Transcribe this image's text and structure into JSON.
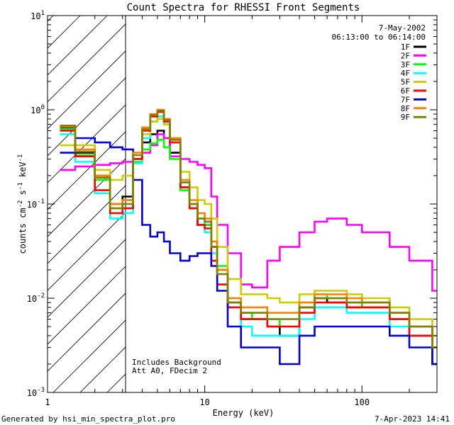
{
  "chart_data": {
    "type": "line",
    "title": "Count Spectra for RHESSI Front Segments",
    "xlabel": "Energy (keV)",
    "ylabel": "counts cm-2 s-1 keV-1",
    "xscale": "log",
    "yscale": "log",
    "xlim": [
      1,
      300
    ],
    "ylim": [
      0.001,
      10
    ],
    "x_ticks": [
      {
        "value": 1,
        "label": "1"
      },
      {
        "value": 10,
        "label": "10"
      },
      {
        "value": 100,
        "label": "100"
      }
    ],
    "y_ticks": [
      {
        "value": 0.001,
        "base": "10",
        "exp": "-3"
      },
      {
        "value": 0.01,
        "base": "10",
        "exp": "-2"
      },
      {
        "value": 0.1,
        "base": "10",
        "exp": "-1"
      },
      {
        "value": 1,
        "base": "10",
        "exp": "0"
      },
      {
        "value": 10,
        "base": "10",
        "exp": "1"
      }
    ],
    "hatched_region_kev": [
      1,
      3
    ],
    "date": "7-May-2002",
    "time_range": "06:13:00 to 06:14:00",
    "annotations": [
      "Includes Background",
      "Att A0, FDecim 2"
    ],
    "series": [
      {
        "name": "1F",
        "color": "#000000",
        "x": [
          1.2,
          1.5,
          2,
          2.5,
          3,
          3.5,
          4,
          4.5,
          5,
          5.5,
          6,
          7,
          8,
          9,
          10,
          11,
          12,
          14,
          17,
          20,
          25,
          30,
          40,
          50,
          60,
          80,
          100,
          150,
          200,
          280
        ],
        "y": [
          0.65,
          0.35,
          0.2,
          0.1,
          0.12,
          0.3,
          0.45,
          0.55,
          0.6,
          0.5,
          0.35,
          0.15,
          0.09,
          0.06,
          0.06,
          0.035,
          0.02,
          0.009,
          0.006,
          0.006,
          0.005,
          0.004,
          0.008,
          0.01,
          0.009,
          0.008,
          0.008,
          0.006,
          0.004,
          0.002
        ]
      },
      {
        "name": "2F",
        "color": "#ff00ff",
        "x": [
          1.2,
          1.5,
          2,
          2.5,
          3,
          3.5,
          4,
          4.5,
          5,
          5.5,
          6,
          7,
          8,
          9,
          10,
          11,
          12,
          14,
          17,
          20,
          25,
          30,
          40,
          50,
          60,
          80,
          100,
          150,
          200,
          280
        ],
        "y": [
          0.23,
          0.25,
          0.26,
          0.27,
          0.28,
          0.3,
          0.35,
          0.42,
          0.55,
          0.5,
          0.32,
          0.3,
          0.28,
          0.26,
          0.24,
          0.12,
          0.06,
          0.03,
          0.014,
          0.013,
          0.025,
          0.035,
          0.05,
          0.065,
          0.07,
          0.06,
          0.05,
          0.035,
          0.025,
          0.012
        ]
      },
      {
        "name": "3F",
        "color": "#00ff00",
        "x": [
          1.2,
          1.5,
          2,
          2.5,
          3,
          3.5,
          4,
          4.5,
          5,
          5.5,
          6,
          7,
          8,
          9,
          10,
          11,
          12,
          14,
          17,
          20,
          25,
          30,
          40,
          50,
          60,
          80,
          100,
          150,
          200,
          280
        ],
        "y": [
          0.62,
          0.33,
          0.18,
          0.09,
          0.11,
          0.28,
          0.38,
          0.44,
          0.48,
          0.4,
          0.3,
          0.14,
          0.1,
          0.07,
          0.06,
          0.04,
          0.022,
          0.01,
          0.007,
          0.006,
          0.006,
          0.005,
          0.009,
          0.011,
          0.01,
          0.009,
          0.008,
          0.006,
          0.005,
          0.003
        ]
      },
      {
        "name": "4F",
        "color": "#00ffff",
        "x": [
          1.2,
          1.5,
          2,
          2.5,
          3,
          3.5,
          4,
          4.5,
          5,
          5.5,
          6,
          7,
          8,
          9,
          10,
          11,
          12,
          14,
          17,
          20,
          25,
          30,
          40,
          50,
          60,
          80,
          100,
          150,
          200,
          280
        ],
        "y": [
          0.55,
          0.28,
          0.13,
          0.07,
          0.08,
          0.27,
          0.5,
          0.75,
          0.85,
          0.7,
          0.45,
          0.17,
          0.1,
          0.07,
          0.05,
          0.03,
          0.018,
          0.009,
          0.005,
          0.004,
          0.004,
          0.004,
          0.006,
          0.008,
          0.008,
          0.007,
          0.007,
          0.005,
          0.004,
          0.002
        ]
      },
      {
        "name": "5F",
        "color": "#cccc00",
        "x": [
          1.2,
          1.5,
          2,
          2.5,
          3,
          3.5,
          4,
          4.5,
          5,
          5.5,
          6,
          7,
          8,
          9,
          10,
          11,
          12,
          14,
          17,
          20,
          25,
          30,
          40,
          50,
          60,
          80,
          100,
          150,
          200,
          280
        ],
        "y": [
          0.42,
          0.42,
          0.23,
          0.18,
          0.2,
          0.3,
          0.55,
          0.75,
          0.8,
          0.7,
          0.5,
          0.22,
          0.15,
          0.11,
          0.1,
          0.07,
          0.035,
          0.016,
          0.011,
          0.011,
          0.01,
          0.009,
          0.011,
          0.012,
          0.012,
          0.011,
          0.01,
          0.008,
          0.006,
          0.004
        ]
      },
      {
        "name": "6F",
        "color": "#ff0000",
        "x": [
          1.2,
          1.5,
          2,
          2.5,
          3,
          3.5,
          4,
          4.5,
          5,
          5.5,
          6,
          7,
          8,
          9,
          10,
          11,
          12,
          14,
          17,
          20,
          25,
          30,
          40,
          50,
          60,
          80,
          100,
          150,
          200,
          280
        ],
        "y": [
          0.6,
          0.32,
          0.14,
          0.08,
          0.09,
          0.3,
          0.6,
          0.85,
          0.95,
          0.75,
          0.45,
          0.15,
          0.09,
          0.06,
          0.055,
          0.025,
          0.014,
          0.008,
          0.006,
          0.006,
          0.005,
          0.005,
          0.007,
          0.009,
          0.009,
          0.008,
          0.008,
          0.006,
          0.004,
          0.002
        ]
      },
      {
        "name": "7F",
        "color": "#0000dd",
        "x": [
          1.2,
          1.5,
          2,
          2.5,
          3,
          3.5,
          4,
          4.5,
          5,
          5.5,
          6,
          7,
          8,
          9,
          10,
          11,
          12,
          14,
          17,
          20,
          25,
          30,
          40,
          50,
          60,
          80,
          100,
          150,
          200,
          280
        ],
        "y": [
          0.35,
          0.5,
          0.45,
          0.4,
          0.38,
          0.18,
          0.06,
          0.045,
          0.05,
          0.04,
          0.03,
          0.025,
          0.028,
          0.03,
          0.03,
          0.022,
          0.012,
          0.005,
          0.003,
          0.003,
          0.003,
          0.002,
          0.004,
          0.005,
          0.005,
          0.005,
          0.005,
          0.004,
          0.003,
          0.002
        ]
      },
      {
        "name": "8F",
        "color": "#ff8000",
        "x": [
          1.2,
          1.5,
          2,
          2.5,
          3,
          3.5,
          4,
          4.5,
          5,
          5.5,
          6,
          7,
          8,
          9,
          10,
          11,
          12,
          14,
          17,
          20,
          25,
          30,
          40,
          50,
          60,
          80,
          100,
          150,
          200,
          280
        ],
        "y": [
          0.66,
          0.38,
          0.2,
          0.1,
          0.11,
          0.35,
          0.65,
          0.9,
          1.0,
          0.8,
          0.5,
          0.18,
          0.11,
          0.08,
          0.07,
          0.04,
          0.02,
          0.01,
          0.008,
          0.008,
          0.007,
          0.007,
          0.009,
          0.011,
          0.011,
          0.01,
          0.009,
          0.007,
          0.005,
          0.003
        ]
      },
      {
        "name": "9F",
        "color": "#808000",
        "x": [
          1.2,
          1.5,
          2,
          2.5,
          3,
          3.5,
          4,
          4.5,
          5,
          5.5,
          6,
          7,
          8,
          9,
          10,
          11,
          12,
          14,
          17,
          20,
          25,
          30,
          40,
          50,
          60,
          80,
          100,
          150,
          200,
          280
        ],
        "y": [
          0.68,
          0.36,
          0.19,
          0.09,
          0.1,
          0.33,
          0.62,
          0.88,
          0.98,
          0.78,
          0.48,
          0.17,
          0.1,
          0.07,
          0.065,
          0.035,
          0.018,
          0.009,
          0.007,
          0.007,
          0.006,
          0.006,
          0.008,
          0.01,
          0.01,
          0.009,
          0.009,
          0.007,
          0.005,
          0.003
        ]
      }
    ]
  },
  "footer": {
    "generated": "Generated by hsi_min_spectra_plot.pro",
    "timestamp": "7-Apr-2023 14:41"
  }
}
